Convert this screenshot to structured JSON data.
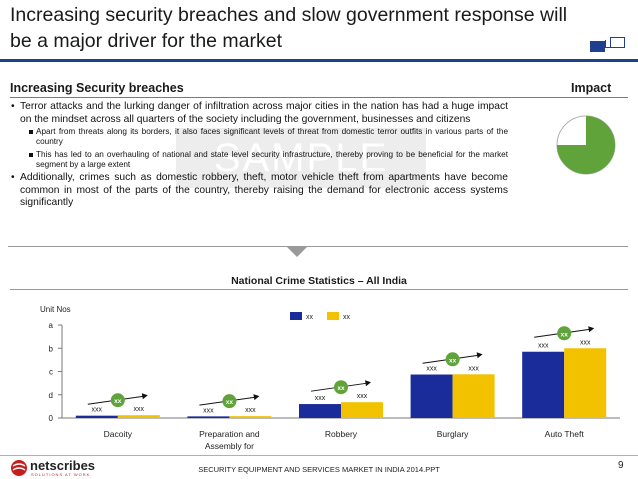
{
  "slide": {
    "title": "Increasing security breaches and slow government response will be a major driver for the market",
    "section_left": "Increasing Security breaches",
    "section_right": "Impact",
    "watermark": "SAMPLE",
    "bullets": [
      "Terror attacks and the lurking danger of infiltration across major cities in the nation has had a huge impact on the mindset across all quarters of the society including the government, businesses and citizens",
      "Apart from threats along its borders, it also faces significant levels of threat from domestic terror outfits in various parts of the country",
      "This has led to an overhauling of national and state level security infrastructure, thereby proving to be beneficial for the market segment by a large extent",
      "Additionally, crimes such as domestic robbery, theft, motor vehicle theft from apartments have become common in most of the parts of the country, thereby raising the demand for electronic access systems significantly"
    ],
    "impact_fraction": 0.75,
    "colors": {
      "accent": "#1f3f8f",
      "impact": "#5fa33a"
    },
    "footer": "SECURITY EQUIPMENT AND SERVICES MARKET IN INDIA 2014.PPT",
    "page_number": "9",
    "logo_text": "netscribes",
    "logo_tagline": "SOLUTIONS AT WORK"
  },
  "chart_data": {
    "type": "bar",
    "title": "National Crime Statistics – All India",
    "ylabel": "Unit Nos",
    "y_tick_labels": [
      "0",
      "d",
      "c",
      "b",
      "a"
    ],
    "ylim": [
      0,
      4
    ],
    "categories": [
      "Dacoity",
      "Preparation and Assembly for Dacoity",
      "Robbery",
      "Burglary",
      "Auto Theft"
    ],
    "series": [
      {
        "name": "xx",
        "color": "#1a2b9a",
        "values": [
          0.1,
          0.07,
          0.6,
          1.87,
          2.85
        ],
        "labels": [
          "xxx",
          "xxx",
          "xxx",
          "xxx",
          "xxx"
        ]
      },
      {
        "name": "xx",
        "color": "#f2c200",
        "values": [
          0.12,
          0.08,
          0.68,
          1.88,
          3.0
        ],
        "labels": [
          "xxx",
          "xxx",
          "xxx",
          "xxx",
          "xxx"
        ]
      }
    ],
    "growth_badges": [
      "xx",
      "xx",
      "xx",
      "xx",
      "xx"
    ],
    "badge_color": "#5fa33a",
    "legend_position": "top-center",
    "grid": false
  }
}
